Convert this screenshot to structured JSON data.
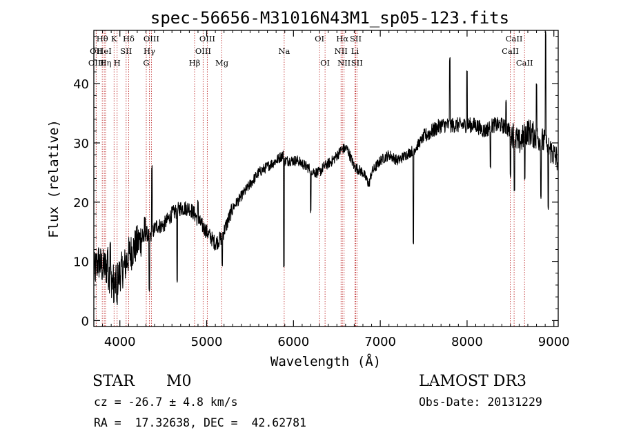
{
  "chart_data": {
    "type": "line",
    "title": "spec-56656-M31016N43M1_sp05-123.fits",
    "xlabel": "Wavelength (Å)",
    "ylabel": "Flux (relative)",
    "xlim": [
      3700,
      9050
    ],
    "ylim": [
      -1,
      49
    ],
    "xticks": [
      4000,
      5000,
      6000,
      7000,
      8000,
      9000
    ],
    "yticks": [
      0,
      10,
      20,
      30,
      40
    ],
    "spectrum_anchors": {
      "x": [
        3700,
        3750,
        3800,
        3850,
        3900,
        3950,
        4000,
        4050,
        4100,
        4150,
        4200,
        4250,
        4300,
        4340,
        4380,
        4420,
        4500,
        4600,
        4700,
        4800,
        4860,
        4900,
        5000,
        5100,
        5170,
        5250,
        5300,
        5400,
        5500,
        5600,
        5700,
        5800,
        5880,
        5893,
        5910,
        5950,
        6050,
        6150,
        6250,
        6300,
        6350,
        6450,
        6562,
        6620,
        6700,
        6800,
        6870,
        6900,
        7000,
        7100,
        7200,
        7300,
        7400,
        7500,
        7600,
        7700,
        7800,
        7900,
        8000,
        8100,
        8200,
        8300,
        8400,
        8500,
        8600,
        8700,
        8800,
        8900,
        9000,
        9050
      ],
      "y": [
        8,
        10,
        9,
        9,
        7,
        6,
        8,
        9,
        11,
        12,
        13,
        14,
        15,
        14,
        15,
        16,
        16,
        18,
        19,
        19,
        18,
        17,
        15,
        13,
        14,
        17,
        19,
        21,
        23,
        25,
        26,
        27,
        28,
        27,
        27,
        27,
        27,
        26,
        25,
        25,
        26,
        27,
        29,
        29,
        26,
        25,
        23,
        25,
        27,
        28,
        27,
        28,
        29,
        31,
        32,
        33,
        33,
        33,
        33,
        33,
        32,
        33,
        33,
        32,
        30,
        32,
        31,
        30,
        28,
        27
      ]
    },
    "spectrum_features": [
      {
        "x": 3860,
        "y": 12
      },
      {
        "x": 3890,
        "y": 13
      },
      {
        "x": 3930,
        "y": 3
      },
      {
        "x": 3968,
        "y": 3
      },
      {
        "x": 4340,
        "y": 5
      },
      {
        "x": 4370,
        "y": 26
      },
      {
        "x": 4660,
        "y": 6.5
      },
      {
        "x": 4900,
        "y": 20
      },
      {
        "x": 5180,
        "y": 9.5
      },
      {
        "x": 5891,
        "y": 9
      },
      {
        "x": 6060,
        "y": 26.5
      },
      {
        "x": 6200,
        "y": 18.5
      },
      {
        "x": 7380,
        "y": 13
      },
      {
        "x": 7800,
        "y": 44
      },
      {
        "x": 8000,
        "y": 42
      },
      {
        "x": 8270,
        "y": 26
      },
      {
        "x": 8450,
        "y": 37
      },
      {
        "x": 8500,
        "y": 24.5
      },
      {
        "x": 8545,
        "y": 22
      },
      {
        "x": 8665,
        "y": 24
      },
      {
        "x": 8800,
        "y": 40
      },
      {
        "x": 8850,
        "y": 21
      },
      {
        "x": 8905,
        "y": 48.5
      },
      {
        "x": 8935,
        "y": 19
      }
    ],
    "lines": [
      {
        "name": "OII",
        "x": 3727,
        "row": 1
      },
      {
        "name": "OIII",
        "x": 3727,
        "row": 2
      },
      {
        "name": "Hθ",
        "x": 3797,
        "row": 0
      },
      {
        "name": "HeI",
        "x": 3820,
        "row": 1
      },
      {
        "name": "Hη",
        "x": 3835,
        "row": 2
      },
      {
        "name": "K",
        "x": 3933,
        "row": 0
      },
      {
        "name": "H",
        "x": 3968,
        "row": 2
      },
      {
        "name": "SII",
        "x": 4072,
        "row": 1
      },
      {
        "name": "Hδ",
        "x": 4101,
        "row": 0
      },
      {
        "name": "G",
        "x": 4304,
        "row": 2
      },
      {
        "name": "OIII",
        "x": 4363,
        "row": 0
      },
      {
        "name": "Hγ",
        "x": 4340,
        "row": 1
      },
      {
        "name": "Hβ",
        "x": 4861,
        "row": 2
      },
      {
        "name": "OIII",
        "x": 4959,
        "row": 1
      },
      {
        "name": "OIII",
        "x": 5007,
        "row": 0
      },
      {
        "name": "Mg",
        "x": 5175,
        "row": 2
      },
      {
        "name": "Na",
        "x": 5893,
        "row": 1
      },
      {
        "name": "OI",
        "x": 6300,
        "row": 0
      },
      {
        "name": "OI",
        "x": 6364,
        "row": 2
      },
      {
        "name": "NII",
        "x": 6548,
        "row": 1
      },
      {
        "name": "Hα",
        "x": 6563,
        "row": 0
      },
      {
        "name": "NII",
        "x": 6583,
        "row": 2
      },
      {
        "name": "SII",
        "x": 6717,
        "row": 0
      },
      {
        "name": "Li",
        "x": 6708,
        "row": 1
      },
      {
        "name": "SII",
        "x": 6731,
        "row": 2
      },
      {
        "name": "CaII",
        "x": 8498,
        "row": 1
      },
      {
        "name": "CaII",
        "x": 8542,
        "row": 0
      },
      {
        "name": "CaII",
        "x": 8662,
        "row": 2
      }
    ]
  },
  "info": {
    "object_class": "STAR",
    "subclass": "M0",
    "survey": "LAMOST DR3",
    "velocity": "cz = -26.7 ± 4.8 km/s",
    "obs_date": "Obs-Date: 20131229",
    "coords": "RA =  17.32638, DEC =  42.62781"
  }
}
